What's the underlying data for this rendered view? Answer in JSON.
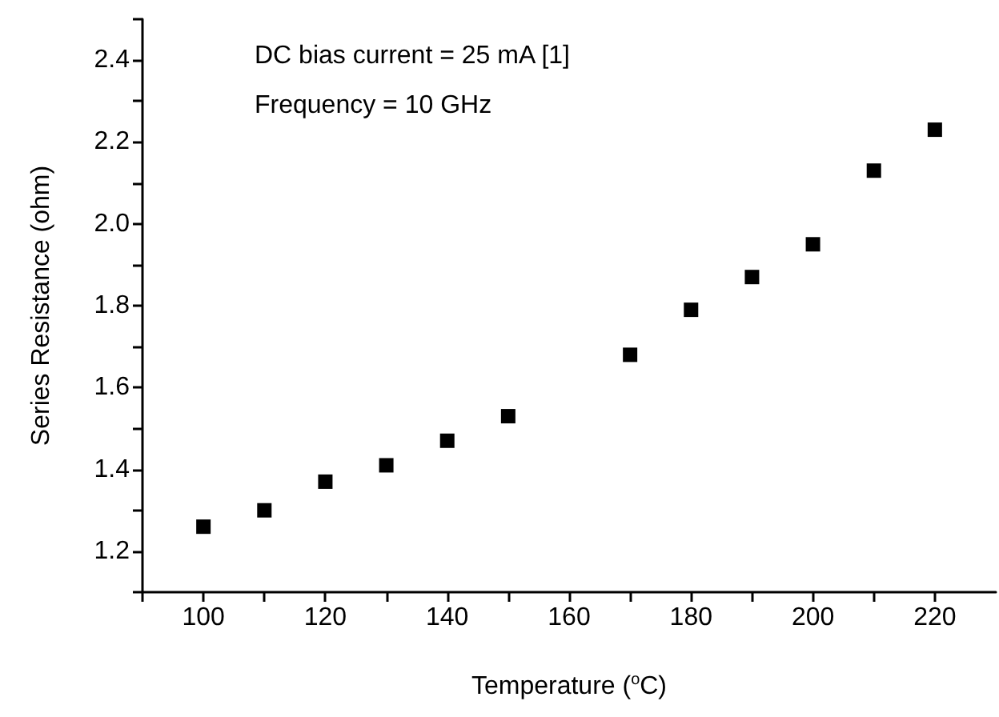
{
  "chart_data": {
    "type": "scatter",
    "xlabel": "Temperature ($^{o}$C)",
    "ylabel": "Series Resistance (ohm)",
    "annotations": [
      "DC bias current = 25 mA [1]",
      "Frequency = 10 GHz"
    ],
    "x": [
      100,
      110,
      120,
      130,
      140,
      150,
      170,
      180,
      190,
      200,
      210,
      220
    ],
    "series": [
      {
        "color": "#000000",
        "values": [
          1.26,
          1.3,
          1.37,
          1.41,
          1.47,
          1.53,
          1.68,
          1.79,
          1.87,
          1.95,
          2.13,
          2.23
        ]
      }
    ],
    "xlim": [
      90,
      230
    ],
    "xticks": [
      {
        "value": 90,
        "label": null
      },
      {
        "value": 100,
        "label": "100"
      },
      {
        "value": 110,
        "label": null
      },
      {
        "value": 120,
        "label": "120"
      },
      {
        "value": 130,
        "label": null
      },
      {
        "value": 140,
        "label": "140"
      },
      {
        "value": 150,
        "label": null
      },
      {
        "value": 160,
        "label": "160"
      },
      {
        "value": 170,
        "label": null
      },
      {
        "value": 180,
        "label": "180"
      },
      {
        "value": 190,
        "label": null
      },
      {
        "value": 200,
        "label": "200"
      },
      {
        "value": 210,
        "label": null
      },
      {
        "value": 220,
        "label": "220"
      }
    ],
    "ylim": [
      1.1,
      2.5
    ],
    "yticks": [
      {
        "value": 1.1,
        "label": null
      },
      {
        "value": 1.2,
        "label": "1.2"
      },
      {
        "value": 1.3,
        "label": null
      },
      {
        "value": 1.4,
        "label": "1.4"
      },
      {
        "value": 1.5,
        "label": null
      },
      {
        "value": 1.6,
        "label": "1.6"
      },
      {
        "value": 1.7,
        "label": null
      },
      {
        "value": 1.8,
        "label": "1.8"
      },
      {
        "value": 1.9,
        "label": null
      },
      {
        "value": 2.0,
        "label": "2.0"
      },
      {
        "value": 2.1,
        "label": null
      },
      {
        "value": 2.2,
        "label": "2.2"
      },
      {
        "value": 2.3,
        "label": null
      },
      {
        "value": 2.4,
        "label": "2.4"
      },
      {
        "value": 2.5,
        "label": null
      }
    ],
    "marker": "square"
  }
}
